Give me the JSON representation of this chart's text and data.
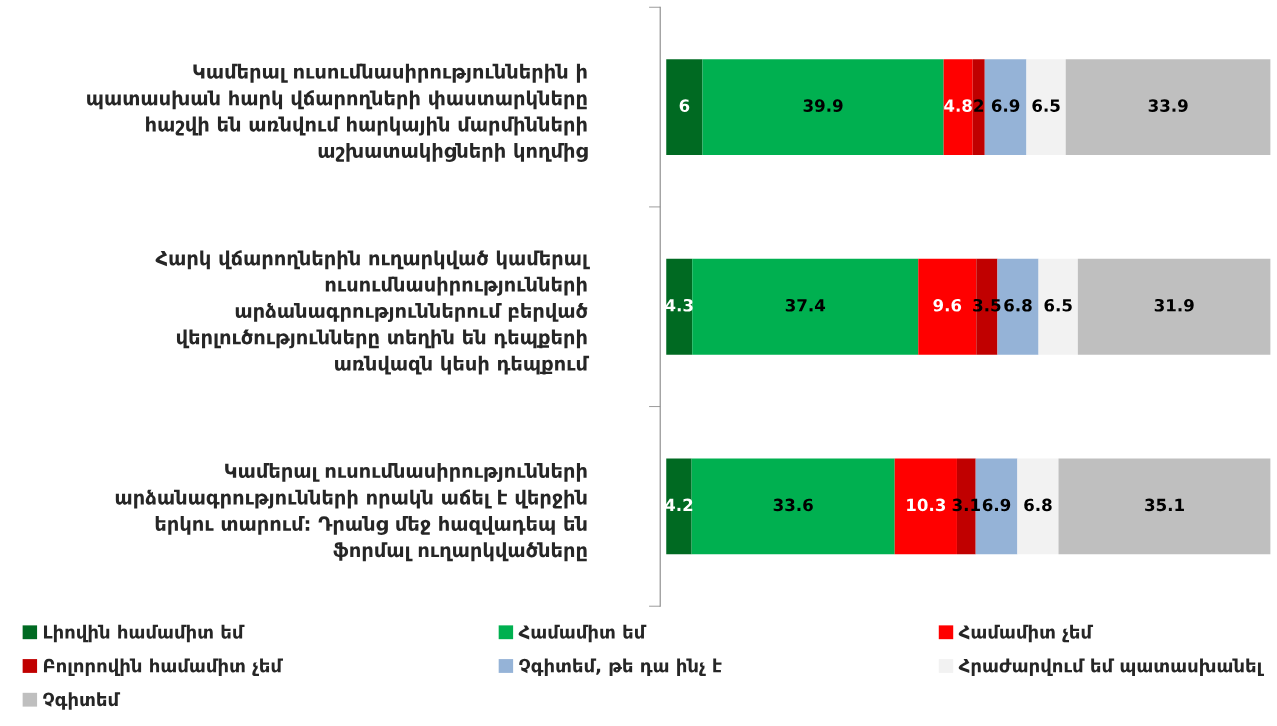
{
  "chart_data": {
    "type": "bar",
    "orientation": "horizontal",
    "stacked": true,
    "data_labels": true,
    "legend": "bottom",
    "grid": false,
    "categories": [
      "Կամերալ ուսումնասիրություններին ի\nպատասխան հարկ վճարողների փաստարկները\nհաշվի են առնվում հարկային մարմինների\nաշխատակիցների կողմից",
      "Հարկ վճարողներին ուղարկված կամերալ\nուսումնասիրությունների\nարձանագրություններում բերված\nվերլուծությունները տեղին են դեպքերի\nառնվազն կեսի դեպքում",
      "Կամերալ ուսումնասիրությունների\nարձանագրությունների որակն աճել է վերջին\nերկու տարում: Դրանց մեջ հազվադեպ են\nֆորմալ ուղարկվածները"
    ],
    "series": [
      {
        "name": "Լիովին համամիտ եմ",
        "color": "#006a22",
        "values": [
          6,
          4.3,
          4.2
        ]
      },
      {
        "name": "Համամիտ եմ",
        "color": "#00b050",
        "values": [
          39.9,
          37.4,
          33.6
        ]
      },
      {
        "name": "Համամիտ չեմ",
        "color": "#ff0000",
        "values": [
          4.8,
          9.6,
          10.3
        ]
      },
      {
        "name": "Բոլորովին համամիտ չեմ",
        "color": "#c00000",
        "values": [
          2,
          3.5,
          3.1
        ]
      },
      {
        "name": "Չգիտեմ, թե դա ինչ է",
        "color": "#95b3d7",
        "values": [
          6.9,
          6.8,
          6.9
        ]
      },
      {
        "name": "Հրաժարվում եմ պատասխանել",
        "color": "#f2f2f2",
        "values": [
          6.5,
          6.5,
          6.8
        ]
      },
      {
        "name": "Չգիտեմ",
        "color": "#bfbfbf",
        "values": [
          33.9,
          31.9,
          35.1
        ]
      }
    ]
  }
}
